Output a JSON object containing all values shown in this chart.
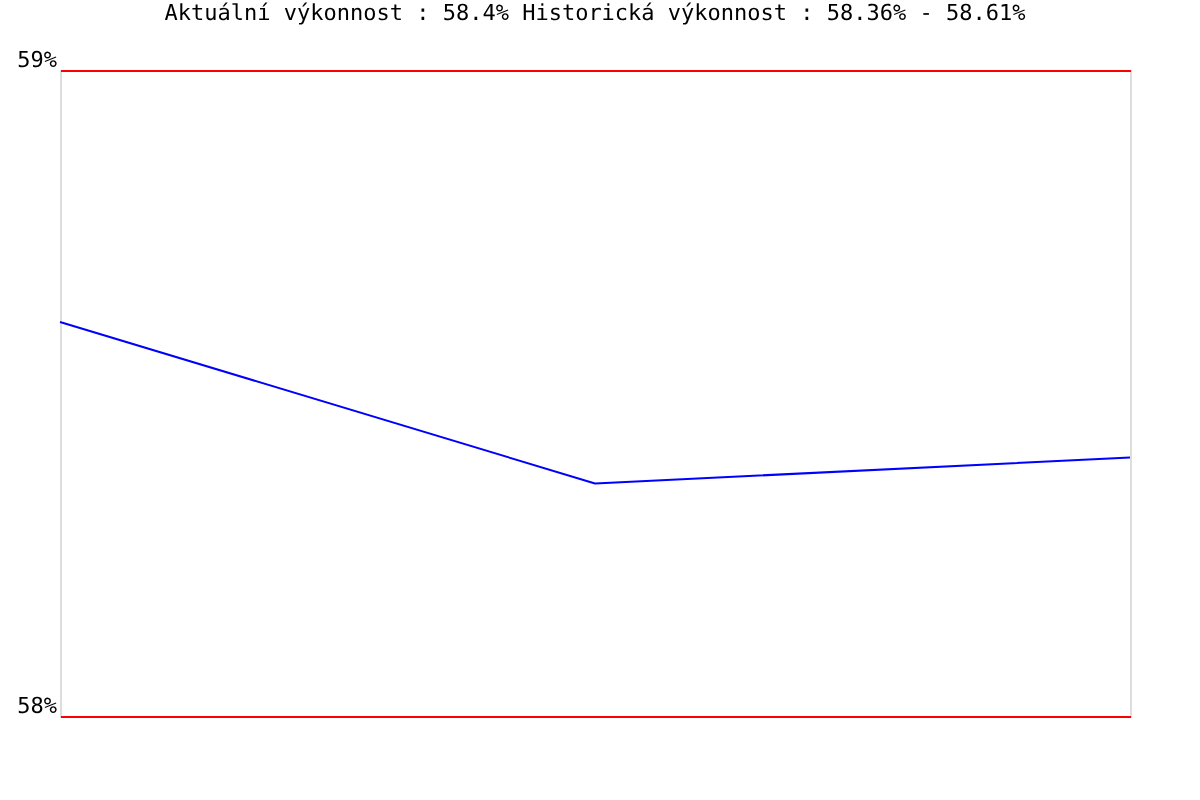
{
  "chart_data": {
    "type": "line",
    "title": "Aktuální výkonnost : 58.4%  Historická výkonnost : 58.36% - 58.61%",
    "categories": [
      null,
      null,
      null
    ],
    "series": [
      {
        "color": "#0000ff",
        "values": [
          58.61,
          58.36,
          58.4
        ]
      }
    ],
    "ylim": [
      58,
      59
    ],
    "yticks": [
      {
        "value": 58,
        "label": "58%"
      },
      {
        "value": 59,
        "label": "59%"
      }
    ],
    "grid": "y",
    "tick_labels": "y",
    "legend": false,
    "marker": "none"
  }
}
